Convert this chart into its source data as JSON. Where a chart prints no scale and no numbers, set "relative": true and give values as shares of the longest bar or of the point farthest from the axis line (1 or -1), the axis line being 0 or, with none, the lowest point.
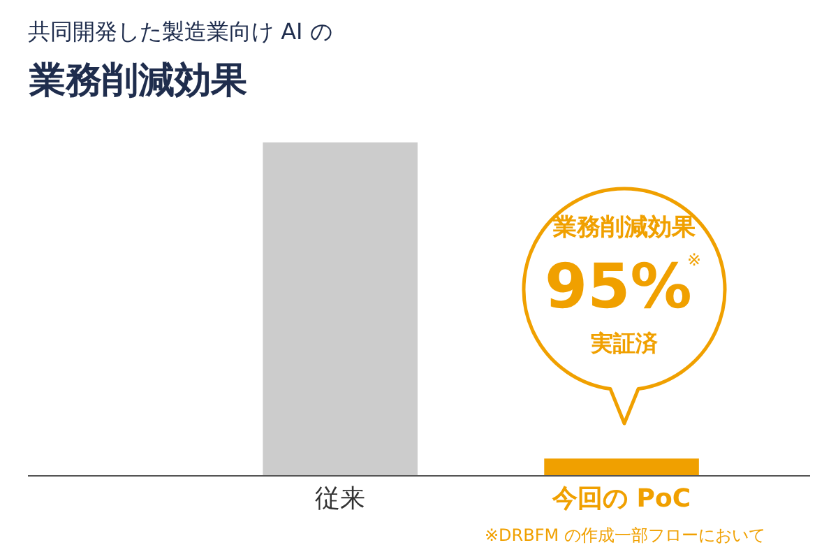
{
  "chart_data": {
    "type": "bar",
    "subtitle": "共同開発した製造業向け AI の",
    "title": "業務削減効果",
    "categories": [
      "従来",
      "今回の PoC"
    ],
    "values": [
      1,
      0.05
    ],
    "colors": [
      "#cccccc",
      "#f0a000"
    ],
    "relative": true,
    "annotations": [
      "業務削減効果",
      "95%",
      "※",
      "実証済",
      "※DRBFM の作成一部フローにおいて"
    ]
  }
}
